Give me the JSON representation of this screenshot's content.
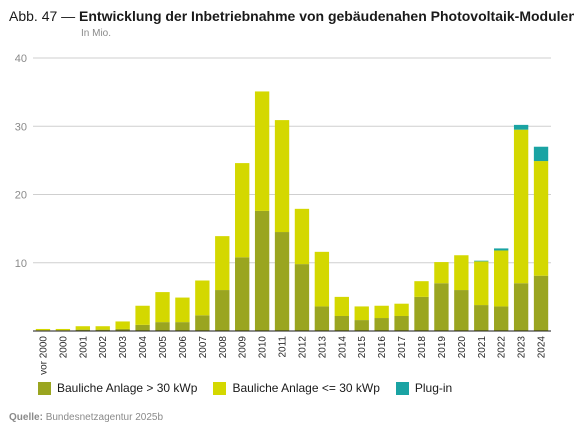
{
  "figure": {
    "title_prefix": "Abb. 47 —",
    "title": "Entwicklung der Inbetriebnahme von gebäudenahen Photovoltaik-Modulen",
    "unit": "In Mio.",
    "source_label": "Quelle:",
    "source_text": "Bundesnetzagentur 2025b"
  },
  "chart_data": {
    "type": "bar",
    "stacked": true,
    "categories": [
      "vor 2000",
      "2000",
      "2001",
      "2002",
      "2003",
      "2004",
      "2005",
      "2006",
      "2007",
      "2008",
      "2009",
      "2010",
      "2011",
      "2012",
      "2013",
      "2014",
      "2015",
      "2016",
      "2017",
      "2018",
      "2019",
      "2020",
      "2021",
      "2022",
      "2023",
      "2024"
    ],
    "series": [
      {
        "name": "Bauliche Anlage > 30 kWp",
        "color": "#9aa520",
        "values": [
          0.1,
          0.1,
          0.2,
          0.2,
          0.3,
          0.9,
          1.3,
          1.3,
          2.3,
          6.0,
          10.8,
          17.6,
          14.5,
          9.8,
          3.6,
          2.2,
          1.6,
          1.9,
          2.2,
          5.0,
          7.0,
          6.0,
          3.8,
          3.6,
          7.0,
          8.1
        ]
      },
      {
        "name": "Bauliche Anlage <= 30 kWp",
        "color": "#d4d800",
        "values": [
          0.2,
          0.2,
          0.5,
          0.5,
          1.1,
          2.8,
          4.4,
          3.6,
          5.1,
          7.9,
          13.8,
          17.5,
          16.4,
          8.1,
          8.0,
          2.8,
          2.0,
          1.8,
          1.8,
          2.3,
          3.1,
          5.1,
          6.4,
          8.2,
          22.5,
          16.8
        ]
      },
      {
        "name": "Plug-in",
        "color": "#1aa3a3",
        "values": [
          0,
          0,
          0,
          0,
          0,
          0,
          0,
          0,
          0,
          0,
          0,
          0,
          0,
          0,
          0,
          0,
          0,
          0,
          0,
          0,
          0,
          0,
          0.1,
          0.3,
          0.7,
          2.1
        ]
      }
    ],
    "ylim": [
      0,
      40
    ],
    "yticks": [
      10,
      20,
      30,
      40
    ],
    "grid": true,
    "legend_position": "bottom"
  }
}
